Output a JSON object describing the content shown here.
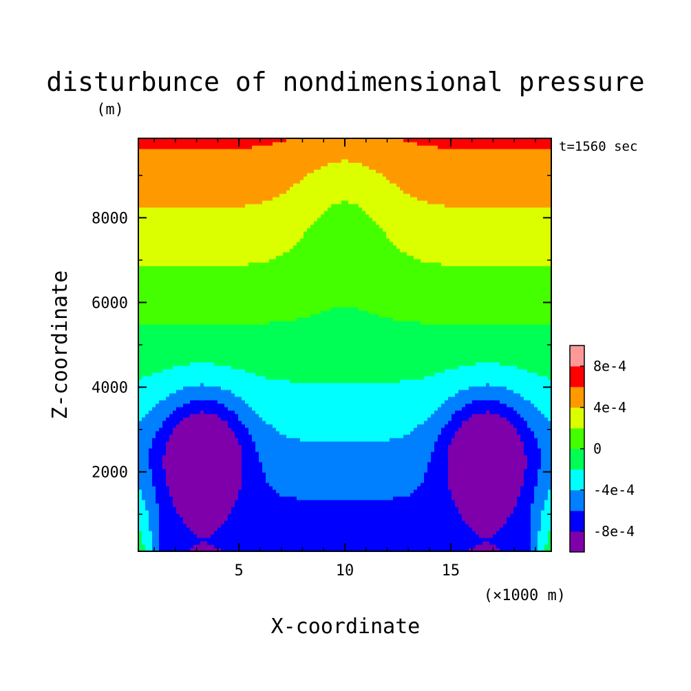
{
  "chart_data": {
    "type": "contour",
    "title": "disturbunce of nondimensional pressure",
    "units": "(m)",
    "time_label": "t=1560 sec",
    "xlabel": "X-coordinate",
    "x_unit_note": "(×1000 m)",
    "ylabel": "Z-coordinate",
    "xlim": [
      0.25,
      19.75
    ],
    "ylim": [
      125,
      9875
    ],
    "x_ticks": [
      {
        "value": 5,
        "label": "5"
      },
      {
        "value": 10,
        "label": "10"
      },
      {
        "value": 15,
        "label": "15"
      }
    ],
    "y_ticks": [
      {
        "value": 2000,
        "label": "2000"
      },
      {
        "value": 4000,
        "label": "4000"
      },
      {
        "value": 6000,
        "label": "6000"
      },
      {
        "value": 8000,
        "label": "8000"
      }
    ],
    "colorbar": {
      "colors": [
        "#7f00aa",
        "#0000ff",
        "#0080ff",
        "#00ffff",
        "#00ff55",
        "#44ff00",
        "#dcff00",
        "#ff9900",
        "#ff0000",
        "#ff9999"
      ],
      "boundaries": [
        -0.0008,
        -0.0006,
        -0.0004,
        -0.0002,
        0,
        0.0002,
        0.0004,
        0.0006,
        0.0008
      ],
      "labels": [
        {
          "value": -0.0008,
          "label": "-8e-4"
        },
        {
          "value": -0.0004,
          "label": "-4e-4"
        },
        {
          "value": 0,
          "label": "0"
        },
        {
          "value": 0.0004,
          "label": "4e-4"
        },
        {
          "value": 0.0008,
          "label": "8e-4"
        }
      ]
    }
  }
}
